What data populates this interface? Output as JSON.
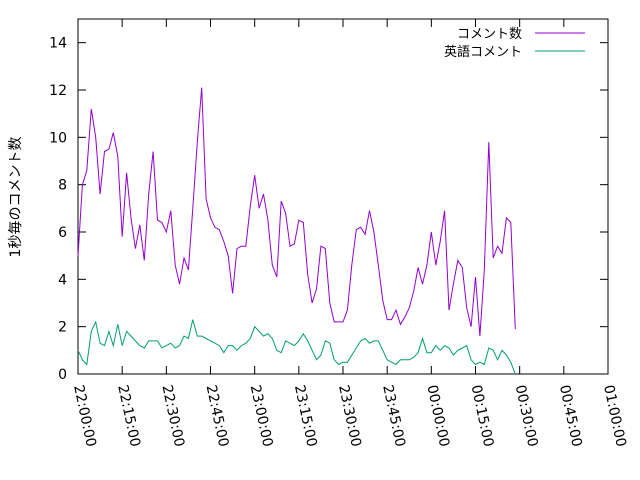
{
  "chart_data": {
    "type": "line",
    "title": "",
    "xlabel": "",
    "ylabel": "1秒毎のコメント数",
    "ylim": [
      0,
      15
    ],
    "xlim": [
      "22:00:00",
      "01:00:00"
    ],
    "yticks": [
      0,
      2,
      4,
      6,
      8,
      10,
      12,
      14
    ],
    "xticks": [
      "22:00:00",
      "22:15:00",
      "22:30:00",
      "22:45:00",
      "23:00:00",
      "23:15:00",
      "23:30:00",
      "23:45:00",
      "00:00:00",
      "00:15:00",
      "00:30:00",
      "00:45:00",
      "01:00:00"
    ],
    "grid": false,
    "legend_position": "top-right",
    "series": [
      {
        "name": "コメント数",
        "color": "#9400d3",
        "points": [
          [
            "22:00:00",
            5.0
          ],
          [
            "22:01:30",
            8.0
          ],
          [
            "22:03:00",
            8.6
          ],
          [
            "22:04:30",
            11.2
          ],
          [
            "22:06:00",
            10.0
          ],
          [
            "22:07:30",
            7.6
          ],
          [
            "22:09:00",
            9.4
          ],
          [
            "22:10:30",
            9.5
          ],
          [
            "22:12:00",
            10.2
          ],
          [
            "22:13:30",
            9.2
          ],
          [
            "22:15:00",
            5.8
          ],
          [
            "22:16:30",
            8.5
          ],
          [
            "22:18:00",
            6.6
          ],
          [
            "22:19:30",
            5.3
          ],
          [
            "22:21:00",
            6.3
          ],
          [
            "22:22:30",
            4.8
          ],
          [
            "22:24:00",
            7.6
          ],
          [
            "22:25:30",
            9.4
          ],
          [
            "22:27:00",
            6.5
          ],
          [
            "22:28:30",
            6.4
          ],
          [
            "22:30:00",
            6.0
          ],
          [
            "22:31:30",
            6.9
          ],
          [
            "22:33:00",
            4.6
          ],
          [
            "22:34:30",
            3.8
          ],
          [
            "22:36:00",
            4.9
          ],
          [
            "22:37:30",
            4.4
          ],
          [
            "22:39:00",
            7.0
          ],
          [
            "22:40:30",
            9.8
          ],
          [
            "22:42:00",
            12.1
          ],
          [
            "22:43:30",
            7.4
          ],
          [
            "22:45:00",
            6.6
          ],
          [
            "22:46:30",
            6.2
          ],
          [
            "22:48:00",
            6.1
          ],
          [
            "22:49:30",
            5.6
          ],
          [
            "22:51:00",
            5.0
          ],
          [
            "22:52:30",
            3.4
          ],
          [
            "22:54:00",
            5.3
          ],
          [
            "22:55:30",
            5.4
          ],
          [
            "22:57:00",
            5.4
          ],
          [
            "22:58:30",
            7.1
          ],
          [
            "23:00:00",
            8.4
          ],
          [
            "23:01:30",
            7.0
          ],
          [
            "23:03:00",
            7.6
          ],
          [
            "23:04:30",
            6.5
          ],
          [
            "23:06:00",
            4.6
          ],
          [
            "23:07:30",
            4.1
          ],
          [
            "23:09:00",
            7.3
          ],
          [
            "23:10:30",
            6.8
          ],
          [
            "23:12:00",
            5.4
          ],
          [
            "23:13:30",
            5.5
          ],
          [
            "23:15:00",
            6.5
          ],
          [
            "23:16:30",
            6.4
          ],
          [
            "23:18:00",
            4.2
          ],
          [
            "23:19:30",
            3.0
          ],
          [
            "23:21:00",
            3.6
          ],
          [
            "23:22:30",
            5.4
          ],
          [
            "23:24:00",
            5.3
          ],
          [
            "23:25:30",
            3.0
          ],
          [
            "23:27:00",
            2.2
          ],
          [
            "23:28:30",
            2.2
          ],
          [
            "23:30:00",
            2.2
          ],
          [
            "23:31:30",
            2.7
          ],
          [
            "23:33:00",
            4.6
          ],
          [
            "23:34:30",
            6.1
          ],
          [
            "23:36:00",
            6.2
          ],
          [
            "23:37:30",
            5.9
          ],
          [
            "23:39:00",
            6.9
          ],
          [
            "23:40:30",
            6.0
          ],
          [
            "23:42:00",
            4.6
          ],
          [
            "23:43:30",
            3.1
          ],
          [
            "23:45:00",
            2.3
          ],
          [
            "23:46:30",
            2.3
          ],
          [
            "23:48:00",
            2.7
          ],
          [
            "23:49:30",
            2.1
          ],
          [
            "23:51:00",
            2.4
          ],
          [
            "23:52:30",
            2.8
          ],
          [
            "23:54:00",
            3.5
          ],
          [
            "23:55:30",
            4.5
          ],
          [
            "23:57:00",
            3.8
          ],
          [
            "23:58:30",
            4.6
          ],
          [
            "00:00:00",
            6.0
          ],
          [
            "00:01:30",
            4.6
          ],
          [
            "00:03:00",
            5.6
          ],
          [
            "00:04:30",
            6.9
          ],
          [
            "00:06:00",
            2.7
          ],
          [
            "00:07:30",
            3.8
          ],
          [
            "00:09:00",
            4.8
          ],
          [
            "00:10:30",
            4.5
          ],
          [
            "00:12:00",
            2.8
          ],
          [
            "00:13:30",
            2.0
          ],
          [
            "00:15:00",
            4.1
          ],
          [
            "00:16:30",
            1.6
          ],
          [
            "00:18:00",
            4.4
          ],
          [
            "00:19:30",
            9.8
          ],
          [
            "00:21:00",
            4.9
          ],
          [
            "00:22:30",
            5.4
          ],
          [
            "00:24:00",
            5.1
          ],
          [
            "00:25:30",
            6.6
          ],
          [
            "00:27:00",
            6.4
          ],
          [
            "00:28:30",
            1.9
          ]
        ]
      },
      {
        "name": "英語コメント",
        "color": "#009e73",
        "points": [
          [
            "22:00:00",
            1.0
          ],
          [
            "22:01:30",
            0.6
          ],
          [
            "22:03:00",
            0.4
          ],
          [
            "22:04:30",
            1.8
          ],
          [
            "22:06:00",
            2.2
          ],
          [
            "22:07:30",
            1.3
          ],
          [
            "22:09:00",
            1.2
          ],
          [
            "22:10:30",
            1.8
          ],
          [
            "22:12:00",
            1.2
          ],
          [
            "22:13:30",
            2.1
          ],
          [
            "22:15:00",
            1.2
          ],
          [
            "22:16:30",
            1.8
          ],
          [
            "22:18:00",
            1.6
          ],
          [
            "22:19:30",
            1.4
          ],
          [
            "22:21:00",
            1.2
          ],
          [
            "22:22:30",
            1.1
          ],
          [
            "22:24:00",
            1.4
          ],
          [
            "22:25:30",
            1.4
          ],
          [
            "22:27:00",
            1.4
          ],
          [
            "22:28:30",
            1.1
          ],
          [
            "22:30:00",
            1.2
          ],
          [
            "22:31:30",
            1.3
          ],
          [
            "22:33:00",
            1.1
          ],
          [
            "22:34:30",
            1.2
          ],
          [
            "22:36:00",
            1.6
          ],
          [
            "22:37:30",
            1.5
          ],
          [
            "22:39:00",
            2.3
          ],
          [
            "22:40:30",
            1.6
          ],
          [
            "22:42:00",
            1.6
          ],
          [
            "22:43:30",
            1.5
          ],
          [
            "22:45:00",
            1.4
          ],
          [
            "22:46:30",
            1.3
          ],
          [
            "22:48:00",
            1.2
          ],
          [
            "22:49:30",
            0.9
          ],
          [
            "22:51:00",
            1.2
          ],
          [
            "22:52:30",
            1.2
          ],
          [
            "22:54:00",
            1.0
          ],
          [
            "22:55:30",
            1.2
          ],
          [
            "22:57:00",
            1.3
          ],
          [
            "22:58:30",
            1.5
          ],
          [
            "23:00:00",
            2.0
          ],
          [
            "23:01:30",
            1.8
          ],
          [
            "23:03:00",
            1.6
          ],
          [
            "23:04:30",
            1.7
          ],
          [
            "23:06:00",
            1.5
          ],
          [
            "23:07:30",
            1.0
          ],
          [
            "23:09:00",
            0.9
          ],
          [
            "23:10:30",
            1.4
          ],
          [
            "23:12:00",
            1.3
          ],
          [
            "23:13:30",
            1.2
          ],
          [
            "23:15:00",
            1.4
          ],
          [
            "23:16:30",
            1.7
          ],
          [
            "23:18:00",
            1.4
          ],
          [
            "23:19:30",
            1.0
          ],
          [
            "23:21:00",
            0.6
          ],
          [
            "23:22:30",
            0.8
          ],
          [
            "23:24:00",
            1.4
          ],
          [
            "23:25:30",
            1.3
          ],
          [
            "23:27:00",
            0.6
          ],
          [
            "23:28:30",
            0.4
          ],
          [
            "23:30:00",
            0.5
          ],
          [
            "23:31:30",
            0.5
          ],
          [
            "23:33:00",
            0.8
          ],
          [
            "23:34:30",
            1.1
          ],
          [
            "23:36:00",
            1.4
          ],
          [
            "23:37:30",
            1.5
          ],
          [
            "23:39:00",
            1.3
          ],
          [
            "23:40:30",
            1.4
          ],
          [
            "23:42:00",
            1.4
          ],
          [
            "23:43:30",
            1.0
          ],
          [
            "23:45:00",
            0.6
          ],
          [
            "23:46:30",
            0.5
          ],
          [
            "23:48:00",
            0.4
          ],
          [
            "23:49:30",
            0.6
          ],
          [
            "23:51:00",
            0.6
          ],
          [
            "23:52:30",
            0.6
          ],
          [
            "23:54:00",
            0.7
          ],
          [
            "23:55:30",
            0.9
          ],
          [
            "23:57:00",
            1.5
          ],
          [
            "23:58:30",
            0.9
          ],
          [
            "00:00:00",
            0.9
          ],
          [
            "00:01:30",
            1.2
          ],
          [
            "00:03:00",
            1.0
          ],
          [
            "00:04:30",
            1.2
          ],
          [
            "00:06:00",
            1.1
          ],
          [
            "00:07:30",
            0.8
          ],
          [
            "00:09:00",
            1.0
          ],
          [
            "00:10:30",
            1.1
          ],
          [
            "00:12:00",
            1.2
          ],
          [
            "00:13:30",
            0.6
          ],
          [
            "00:15:00",
            0.4
          ],
          [
            "00:16:30",
            0.5
          ],
          [
            "00:18:00",
            0.4
          ],
          [
            "00:19:30",
            1.1
          ],
          [
            "00:21:00",
            1.0
          ],
          [
            "00:22:30",
            0.6
          ],
          [
            "00:24:00",
            1.0
          ],
          [
            "00:25:30",
            0.8
          ],
          [
            "00:27:00",
            0.5
          ],
          [
            "00:28:30",
            0.0
          ]
        ]
      }
    ]
  }
}
